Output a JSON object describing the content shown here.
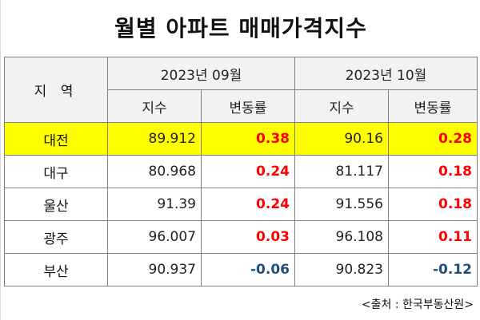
{
  "title": "월별 아파트 매매가격지수",
  "table": {
    "region_header": "지 역",
    "periods": [
      "2023년 09월",
      "2023년 10월"
    ],
    "sub_headers": {
      "index": "지수",
      "change": "변동률"
    },
    "rows": [
      {
        "region": "대전",
        "sep_index": "89.912",
        "sep_change": "0.38",
        "oct_index": "90.16",
        "oct_change": "0.28",
        "highlight": true
      },
      {
        "region": "대구",
        "sep_index": "80.968",
        "sep_change": "0.24",
        "oct_index": "81.117",
        "oct_change": "0.18",
        "highlight": false
      },
      {
        "region": "울산",
        "sep_index": "91.39",
        "sep_change": "0.24",
        "oct_index": "91.556",
        "oct_change": "0.18",
        "highlight": false
      },
      {
        "region": "광주",
        "sep_index": "96.007",
        "sep_change": "0.03",
        "oct_index": "96.108",
        "oct_change": "0.11",
        "highlight": false
      },
      {
        "region": "부산",
        "sep_index": "90.937",
        "sep_change": "-0.06",
        "oct_index": "90.823",
        "oct_change": "-0.12",
        "highlight": false
      }
    ]
  },
  "colors": {
    "highlight": "#ffff00",
    "positive": "#ff0000",
    "negative": "#1f4e79",
    "header_bg": "#f2f2f2"
  },
  "source": "<출처 : 한국부동산원>"
}
